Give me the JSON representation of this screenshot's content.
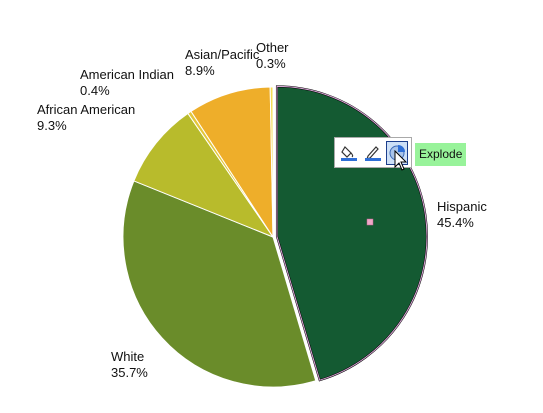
{
  "chart_data": {
    "type": "pie",
    "title": "",
    "slices": [
      {
        "label": "Hispanic",
        "value": 45.4,
        "percent_label": "45.4%",
        "color": "#145a32",
        "exploded": true
      },
      {
        "label": "White",
        "value": 35.7,
        "percent_label": "35.7%",
        "color": "#6a8c2a"
      },
      {
        "label": "African American",
        "value": 9.3,
        "percent_label": "9.3%",
        "color": "#b8bb2c"
      },
      {
        "label": "American Indian",
        "value": 0.4,
        "percent_label": "0.4%",
        "color": "#e3c73b"
      },
      {
        "label": "Asian/Pacific",
        "value": 8.9,
        "percent_label": "8.9%",
        "color": "#eeae2a"
      },
      {
        "label": "Other",
        "value": 0.3,
        "percent_label": "0.3%",
        "color": "#f5dc57"
      }
    ],
    "selected_slice": "Hispanic",
    "legend": "none"
  },
  "mini_toolbar": {
    "buttons": [
      {
        "name": "fill-color-button",
        "icon": "paint-bucket-icon"
      },
      {
        "name": "border-color-button",
        "icon": "pencil-icon"
      },
      {
        "name": "explode-button",
        "icon": "pie-explode-icon",
        "active": true
      }
    ],
    "tooltip": "Explode"
  }
}
